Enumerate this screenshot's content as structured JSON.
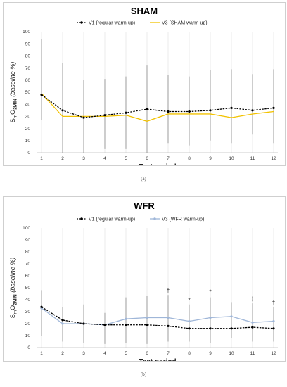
{
  "captions": [
    "(a)",
    "(b)"
  ],
  "chart_data": [
    {
      "type": "line",
      "title": "SHAM",
      "xlabel": "Test period",
      "ylabel_main": "S",
      "ylabel_sub1": "m",
      "ylabel_mid": "O",
      "ylabel_sub2": "2MIN",
      "ylabel_paren": "(baseline %)",
      "x": [
        1,
        2,
        3,
        4,
        5,
        6,
        7,
        8,
        9,
        10,
        11,
        12
      ],
      "ylim": [
        0,
        100
      ],
      "yticks": [
        0,
        10,
        20,
        30,
        40,
        50,
        60,
        70,
        80,
        90,
        100
      ],
      "grid": "vertical",
      "legend_position": "top",
      "series": [
        {
          "name": "V1 (regular warm-up)",
          "color": "#000000",
          "style": "dashed-markers",
          "values": [
            48,
            35,
            29,
            31,
            33,
            36,
            34,
            34,
            35,
            37,
            35,
            37
          ]
        },
        {
          "name": "V3 (SHAM warm-up)",
          "color": "#f2c200",
          "style": "solid",
          "values": [
            49,
            30,
            30,
            30,
            31,
            26,
            32,
            32,
            32,
            29,
            32,
            34
          ]
        }
      ],
      "error_bars": [
        [
          27,
          94
        ],
        [
          0,
          74
        ],
        [
          0,
          60
        ],
        [
          3,
          61
        ],
        [
          3,
          63
        ],
        [
          0,
          72
        ],
        [
          8,
          64
        ],
        [
          6,
          63
        ],
        [
          10,
          68
        ],
        [
          8,
          69
        ],
        [
          15,
          65
        ],
        [
          8,
          69
        ]
      ],
      "annotations": []
    },
    {
      "type": "line",
      "title": "WFR",
      "xlabel": "Test period",
      "ylabel_main": "S",
      "ylabel_sub1": "m",
      "ylabel_mid": "O",
      "ylabel_sub2": "2MIN",
      "ylabel_paren": "(baseline %)",
      "x": [
        1,
        2,
        3,
        4,
        5,
        6,
        7,
        8,
        9,
        10,
        11,
        12
      ],
      "ylim": [
        0,
        100
      ],
      "yticks": [
        0,
        10,
        20,
        30,
        40,
        50,
        60,
        70,
        80,
        90,
        100
      ],
      "grid": "vertical",
      "legend_position": "top",
      "series": [
        {
          "name": "V1 (regular warm-up)",
          "color": "#000000",
          "style": "dashed-markers",
          "values": [
            34,
            23,
            20,
            19,
            19,
            19,
            18,
            16,
            16,
            16,
            17,
            16
          ]
        },
        {
          "name": "V3 (WFR warm-up)",
          "color": "#9fb6d8",
          "style": "solid-markers",
          "values": [
            33,
            20,
            20,
            19,
            24,
            25,
            25,
            22,
            25,
            26,
            21,
            22
          ]
        }
      ],
      "error_bars": [
        [
          10,
          48
        ],
        [
          5,
          34
        ],
        [
          4,
          36
        ],
        [
          3,
          29
        ],
        [
          4,
          42
        ],
        [
          3,
          43
        ],
        [
          5,
          44
        ],
        [
          5,
          36
        ],
        [
          4,
          42
        ],
        [
          8,
          38
        ],
        [
          5,
          37
        ],
        [
          5,
          34
        ]
      ],
      "annotations": [
        {
          "x": 7,
          "label": "†",
          "y": 46
        },
        {
          "x": 8,
          "label": "*",
          "y": 38
        },
        {
          "x": 9,
          "label": "*",
          "y": 45
        },
        {
          "x": 11,
          "label": "‡",
          "y": 39
        },
        {
          "x": 12,
          "label": "†",
          "y": 36
        }
      ]
    }
  ]
}
